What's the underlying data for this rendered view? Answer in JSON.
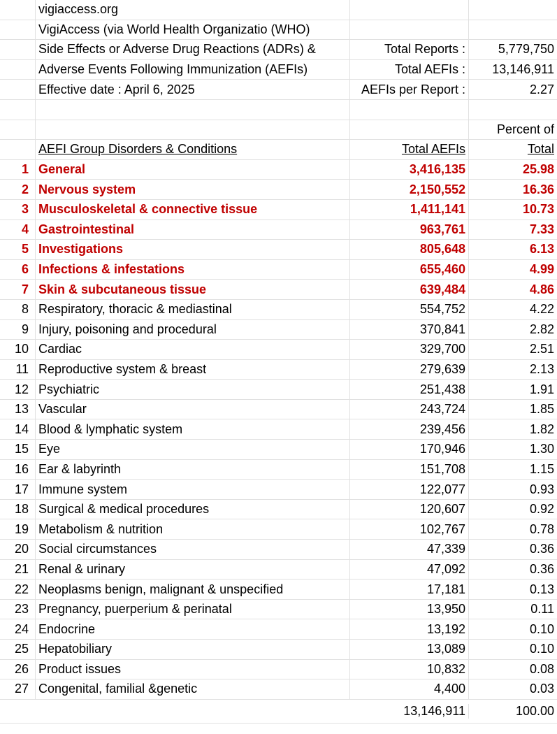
{
  "header": {
    "site": "vigiaccess.org",
    "org_line": "VigiAccess (via World Health Organizatio (WHO)",
    "line3": "Side Effects or Adverse Drug Reactions (ADRs) &",
    "line4": "Adverse Events Following Immunization (AEFIs)",
    "effective": "Effective date : April 6, 2025"
  },
  "summary": {
    "total_reports_label": "Total Reports :",
    "total_reports_value": "5,779,750",
    "total_aefis_label": "Total AEFIs :",
    "total_aefis_value": "13,146,911",
    "per_report_label": "AEFIs per Report :",
    "per_report_value": "2.27"
  },
  "table": {
    "percent_header_top": "Percent of",
    "col_group": "AEFI Group Disorders & Conditions",
    "col_total": "Total AEFIs",
    "col_percent": "Total",
    "highlight_color": "#c00000",
    "rows": [
      {
        "n": "1",
        "name": "General",
        "total": "3,416,135",
        "pct": "25.98",
        "highlight": true
      },
      {
        "n": "2",
        "name": "Nervous system",
        "total": "2,150,552",
        "pct": "16.36",
        "highlight": true
      },
      {
        "n": "3",
        "name": "Musculoskeletal & connective tissue",
        "total": "1,411,141",
        "pct": "10.73",
        "highlight": true
      },
      {
        "n": "4",
        "name": "Gastrointestinal",
        "total": "963,761",
        "pct": "7.33",
        "highlight": true
      },
      {
        "n": "5",
        "name": "Investigations",
        "total": "805,648",
        "pct": "6.13",
        "highlight": true
      },
      {
        "n": "6",
        "name": "Infections & infestations",
        "total": "655,460",
        "pct": "4.99",
        "highlight": true
      },
      {
        "n": "7",
        "name": "Skin & subcutaneous tissue",
        "total": "639,484",
        "pct": "4.86",
        "highlight": true
      },
      {
        "n": "8",
        "name": "Respiratory, thoracic & mediastinal",
        "total": "554,752",
        "pct": "4.22",
        "highlight": false
      },
      {
        "n": "9",
        "name": "Injury, poisoning and procedural",
        "total": "370,841",
        "pct": "2.82",
        "highlight": false
      },
      {
        "n": "10",
        "name": "Cardiac",
        "total": "329,700",
        "pct": "2.51",
        "highlight": false
      },
      {
        "n": "11",
        "name": "Reproductive system & breast",
        "total": "279,639",
        "pct": "2.13",
        "highlight": false
      },
      {
        "n": "12",
        "name": "Psychiatric",
        "total": "251,438",
        "pct": "1.91",
        "highlight": false
      },
      {
        "n": "13",
        "name": "Vascular",
        "total": "243,724",
        "pct": "1.85",
        "highlight": false
      },
      {
        "n": "14",
        "name": "Blood & lymphatic system",
        "total": "239,456",
        "pct": "1.82",
        "highlight": false
      },
      {
        "n": "15",
        "name": "Eye",
        "total": "170,946",
        "pct": "1.30",
        "highlight": false
      },
      {
        "n": "16",
        "name": "Ear & labyrinth",
        "total": "151,708",
        "pct": "1.15",
        "highlight": false
      },
      {
        "n": "17",
        "name": "Immune system",
        "total": "122,077",
        "pct": "0.93",
        "highlight": false
      },
      {
        "n": "18",
        "name": "Surgical & medical procedures",
        "total": "120,607",
        "pct": "0.92",
        "highlight": false
      },
      {
        "n": "19",
        "name": "Metabolism & nutrition",
        "total": "102,767",
        "pct": "0.78",
        "highlight": false
      },
      {
        "n": "20",
        "name": "Social circumstances",
        "total": "47,339",
        "pct": "0.36",
        "highlight": false
      },
      {
        "n": "21",
        "name": "Renal & urinary",
        "total": "47,092",
        "pct": "0.36",
        "highlight": false
      },
      {
        "n": "22",
        "name": "Neoplasms benign, malignant & unspecified",
        "total": "17,181",
        "pct": "0.13",
        "highlight": false
      },
      {
        "n": "23",
        "name": "Pregnancy, puerperium & perinatal",
        "total": "13,950",
        "pct": "0.11",
        "highlight": false
      },
      {
        "n": "24",
        "name": "Endocrine",
        "total": "13,192",
        "pct": "0.10",
        "highlight": false
      },
      {
        "n": "25",
        "name": "Hepatobiliary",
        "total": "13,089",
        "pct": "0.10",
        "highlight": false
      },
      {
        "n": "26",
        "name": "Product issues",
        "total": "10,832",
        "pct": "0.08",
        "highlight": false
      },
      {
        "n": "27",
        "name": "Congenital, familial &genetic",
        "total": "4,400",
        "pct": "0.03",
        "highlight": false
      }
    ],
    "grand_total": "13,146,911",
    "grand_percent": "100.00"
  }
}
